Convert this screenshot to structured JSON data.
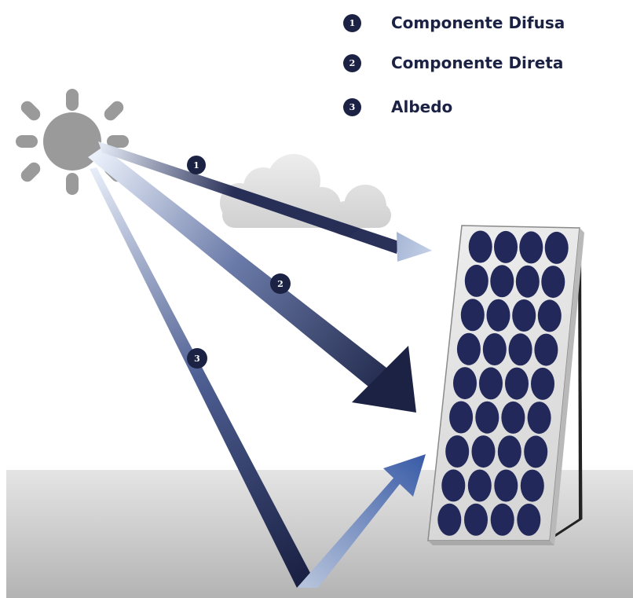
{
  "legend": [
    {
      "number": "1",
      "label": "Componente Difusa"
    },
    {
      "number": "2",
      "label": "Componente Direta"
    },
    {
      "number": "3",
      "label": "Albedo"
    }
  ],
  "rays": [
    {
      "number": "1",
      "name": "diffuse"
    },
    {
      "number": "2",
      "name": "direct"
    },
    {
      "number": "3",
      "name": "albedo"
    }
  ],
  "panel": {
    "rows": 9,
    "columns": 4
  },
  "colors": {
    "navy": "#1b2244",
    "ray_light": "#eaf0fa",
    "cell": "#22295a",
    "sun": "#9a9a9a",
    "cloud": "#d9d9d9",
    "ground": "#c8c8c8",
    "albedo_reflection": "#3c5ea8"
  }
}
